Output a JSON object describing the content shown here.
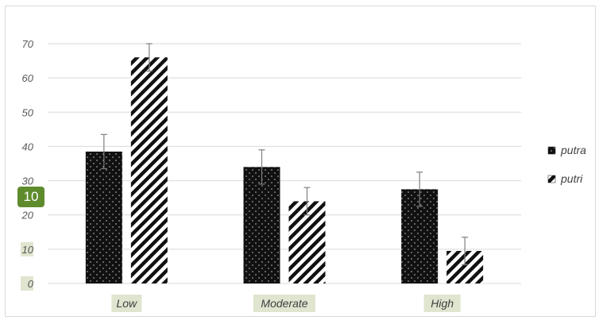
{
  "chart_data": {
    "type": "bar",
    "categories": [
      "Low",
      "Moderate",
      "High"
    ],
    "series": [
      {
        "name": "putra",
        "values": [
          38.5,
          34,
          27.5
        ],
        "errors": [
          5,
          5,
          5
        ],
        "pattern": "dots"
      },
      {
        "name": "putri",
        "values": [
          66,
          24,
          9.5
        ],
        "errors": [
          4,
          4,
          4
        ],
        "pattern": "stripes"
      }
    ],
    "yticks": [
      "0",
      "10",
      "20",
      "30",
      "40",
      "50",
      "60",
      "70"
    ],
    "ylim": [
      0,
      70
    ],
    "grid": true,
    "legend": "right",
    "badge": "10",
    "colors": {
      "bar": "#111111",
      "grid": "#d9d9d9",
      "tick_highlight": "#dfe5cf",
      "badge": "#5e8b2c"
    }
  }
}
